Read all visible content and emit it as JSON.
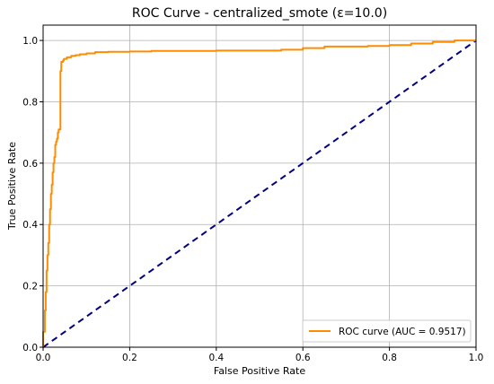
{
  "chart_data": {
    "type": "line",
    "title": "ROC Curve - centralized_smote (ε=10.0)",
    "xlabel": "False Positive Rate",
    "ylabel": "True Positive Rate",
    "xlim": [
      0.0,
      1.0
    ],
    "ylim": [
      0.0,
      1.05
    ],
    "xticks": [
      0.0,
      0.2,
      0.4,
      0.6,
      0.8,
      1.0
    ],
    "yticks": [
      0.0,
      0.2,
      0.4,
      0.6,
      0.8,
      1.0
    ],
    "tick_labels_x": [
      "0.0",
      "0.2",
      "0.4",
      "0.6",
      "0.8",
      "1.0"
    ],
    "tick_labels_y": [
      "0.0",
      "0.2",
      "0.4",
      "0.6",
      "0.8",
      "1.0"
    ],
    "grid": true,
    "legend_position": "lower right",
    "series": [
      {
        "name": "ROC curve (AUC = 0.9517)",
        "color": "#ff8c00",
        "style": "solid",
        "x": [
          0.0,
          0.0,
          0.004,
          0.004,
          0.006,
          0.006,
          0.008,
          0.008,
          0.01,
          0.01,
          0.012,
          0.012,
          0.014,
          0.014,
          0.016,
          0.016,
          0.018,
          0.018,
          0.02,
          0.02,
          0.022,
          0.022,
          0.024,
          0.024,
          0.026,
          0.026,
          0.028,
          0.028,
          0.03,
          0.03,
          0.032,
          0.032,
          0.034,
          0.034,
          0.036,
          0.036,
          0.038,
          0.038,
          0.04,
          0.04,
          0.042,
          0.042,
          0.044,
          0.044,
          0.046,
          0.046,
          0.048,
          0.048,
          0.05,
          0.05,
          0.055,
          0.055,
          0.06,
          0.06,
          0.065,
          0.065,
          0.075,
          0.075,
          0.085,
          0.085,
          0.1,
          0.1,
          0.12,
          0.12,
          0.15,
          0.15,
          0.2,
          0.2,
          0.25,
          0.25,
          0.4,
          0.4,
          0.55,
          0.55,
          0.6,
          0.6,
          0.65,
          0.65,
          0.75,
          0.75,
          0.8,
          0.8,
          0.85,
          0.85,
          0.9,
          0.9,
          0.95,
          0.95,
          1.0
        ],
        "y": [
          0.0,
          0.05,
          0.05,
          0.12,
          0.12,
          0.18,
          0.18,
          0.25,
          0.25,
          0.3,
          0.3,
          0.34,
          0.34,
          0.4,
          0.4,
          0.45,
          0.45,
          0.5,
          0.5,
          0.53,
          0.53,
          0.57,
          0.57,
          0.6,
          0.6,
          0.62,
          0.62,
          0.66,
          0.66,
          0.67,
          0.67,
          0.68,
          0.68,
          0.7,
          0.7,
          0.71,
          0.71,
          0.71,
          0.71,
          0.9,
          0.9,
          0.93,
          0.93,
          0.93,
          0.93,
          0.935,
          0.935,
          0.94,
          0.94,
          0.94,
          0.94,
          0.945,
          0.945,
          0.945,
          0.945,
          0.95,
          0.95,
          0.952,
          0.952,
          0.955,
          0.955,
          0.958,
          0.958,
          0.962,
          0.962,
          0.963,
          0.963,
          0.964,
          0.964,
          0.966,
          0.966,
          0.967,
          0.967,
          0.97,
          0.97,
          0.975,
          0.975,
          0.98,
          0.98,
          0.982,
          0.982,
          0.985,
          0.985,
          0.99,
          0.99,
          0.995,
          0.995,
          1.0,
          1.0
        ]
      },
      {
        "name": "",
        "color": "#000080",
        "style": "dashed",
        "x": [
          0.0,
          1.0
        ],
        "y": [
          0.0,
          1.0
        ]
      }
    ]
  }
}
